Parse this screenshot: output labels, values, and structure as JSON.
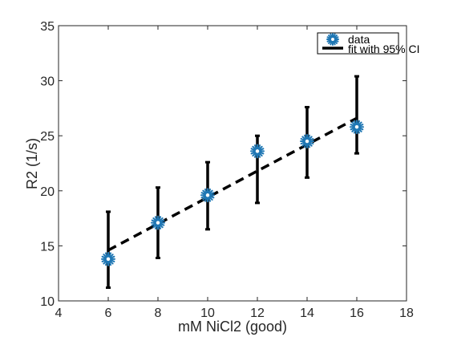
{
  "chart_data": {
    "type": "scatter",
    "xlabel": "mM NiCl2 (good)",
    "ylabel": "R2 (1/s)",
    "xlim": [
      4,
      18
    ],
    "ylim": [
      10,
      35
    ],
    "xticks": [
      4,
      6,
      8,
      10,
      12,
      14,
      16,
      18
    ],
    "yticks": [
      10,
      15,
      20,
      25,
      30,
      35
    ],
    "grid": false,
    "legend_placement": "top-right",
    "series": [
      {
        "name": "data",
        "kind": "points-with-errorbars",
        "marker_color": "#1f77b4",
        "points": [
          {
            "x": 6,
            "y": 13.8,
            "ylow": 11.2,
            "yhigh": 18.1
          },
          {
            "x": 8,
            "y": 17.1,
            "ylow": 13.9,
            "yhigh": 20.3
          },
          {
            "x": 10,
            "y": 19.6,
            "ylow": 16.5,
            "yhigh": 22.6
          },
          {
            "x": 12,
            "y": 23.6,
            "ylow": 18.9,
            "yhigh": 25.0
          },
          {
            "x": 14,
            "y": 24.5,
            "ylow": 21.2,
            "yhigh": 27.6
          },
          {
            "x": 16,
            "y": 25.8,
            "ylow": 23.4,
            "yhigh": 30.4
          }
        ]
      },
      {
        "name": "fit with 95% CI",
        "kind": "dashed-line",
        "color": "#000000",
        "x": [
          6,
          16
        ],
        "y": [
          14.6,
          26.6
        ]
      }
    ]
  }
}
